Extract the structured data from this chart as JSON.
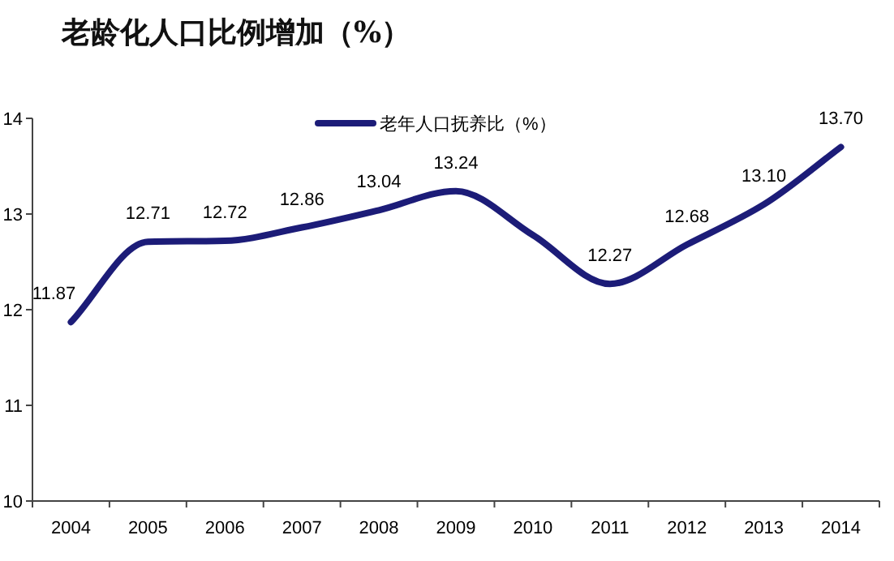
{
  "chart_data": {
    "type": "line",
    "title": "老龄化人口比例增加（%）",
    "categories": [
      "2004",
      "2005",
      "2006",
      "2007",
      "2008",
      "2009",
      "2010",
      "2011",
      "2012",
      "2013",
      "2014"
    ],
    "series": [
      {
        "name": "老年人口抚养比（%）",
        "color": "#1c1c78",
        "values": [
          11.87,
          12.71,
          12.72,
          12.86,
          13.04,
          13.24,
          12.78,
          12.27,
          12.68,
          13.1,
          13.7
        ],
        "value_labels": [
          "11.87",
          "12.71",
          "12.72",
          "12.86",
          "13.04",
          "13.24",
          null,
          "12.27",
          "12.68",
          "13.10",
          "13.70"
        ]
      }
    ],
    "ylim": [
      10,
      14
    ],
    "yticks": [
      10,
      11,
      12,
      13,
      14
    ],
    "grid": false,
    "legend": "top",
    "marker": "none",
    "line_style": "solid"
  }
}
